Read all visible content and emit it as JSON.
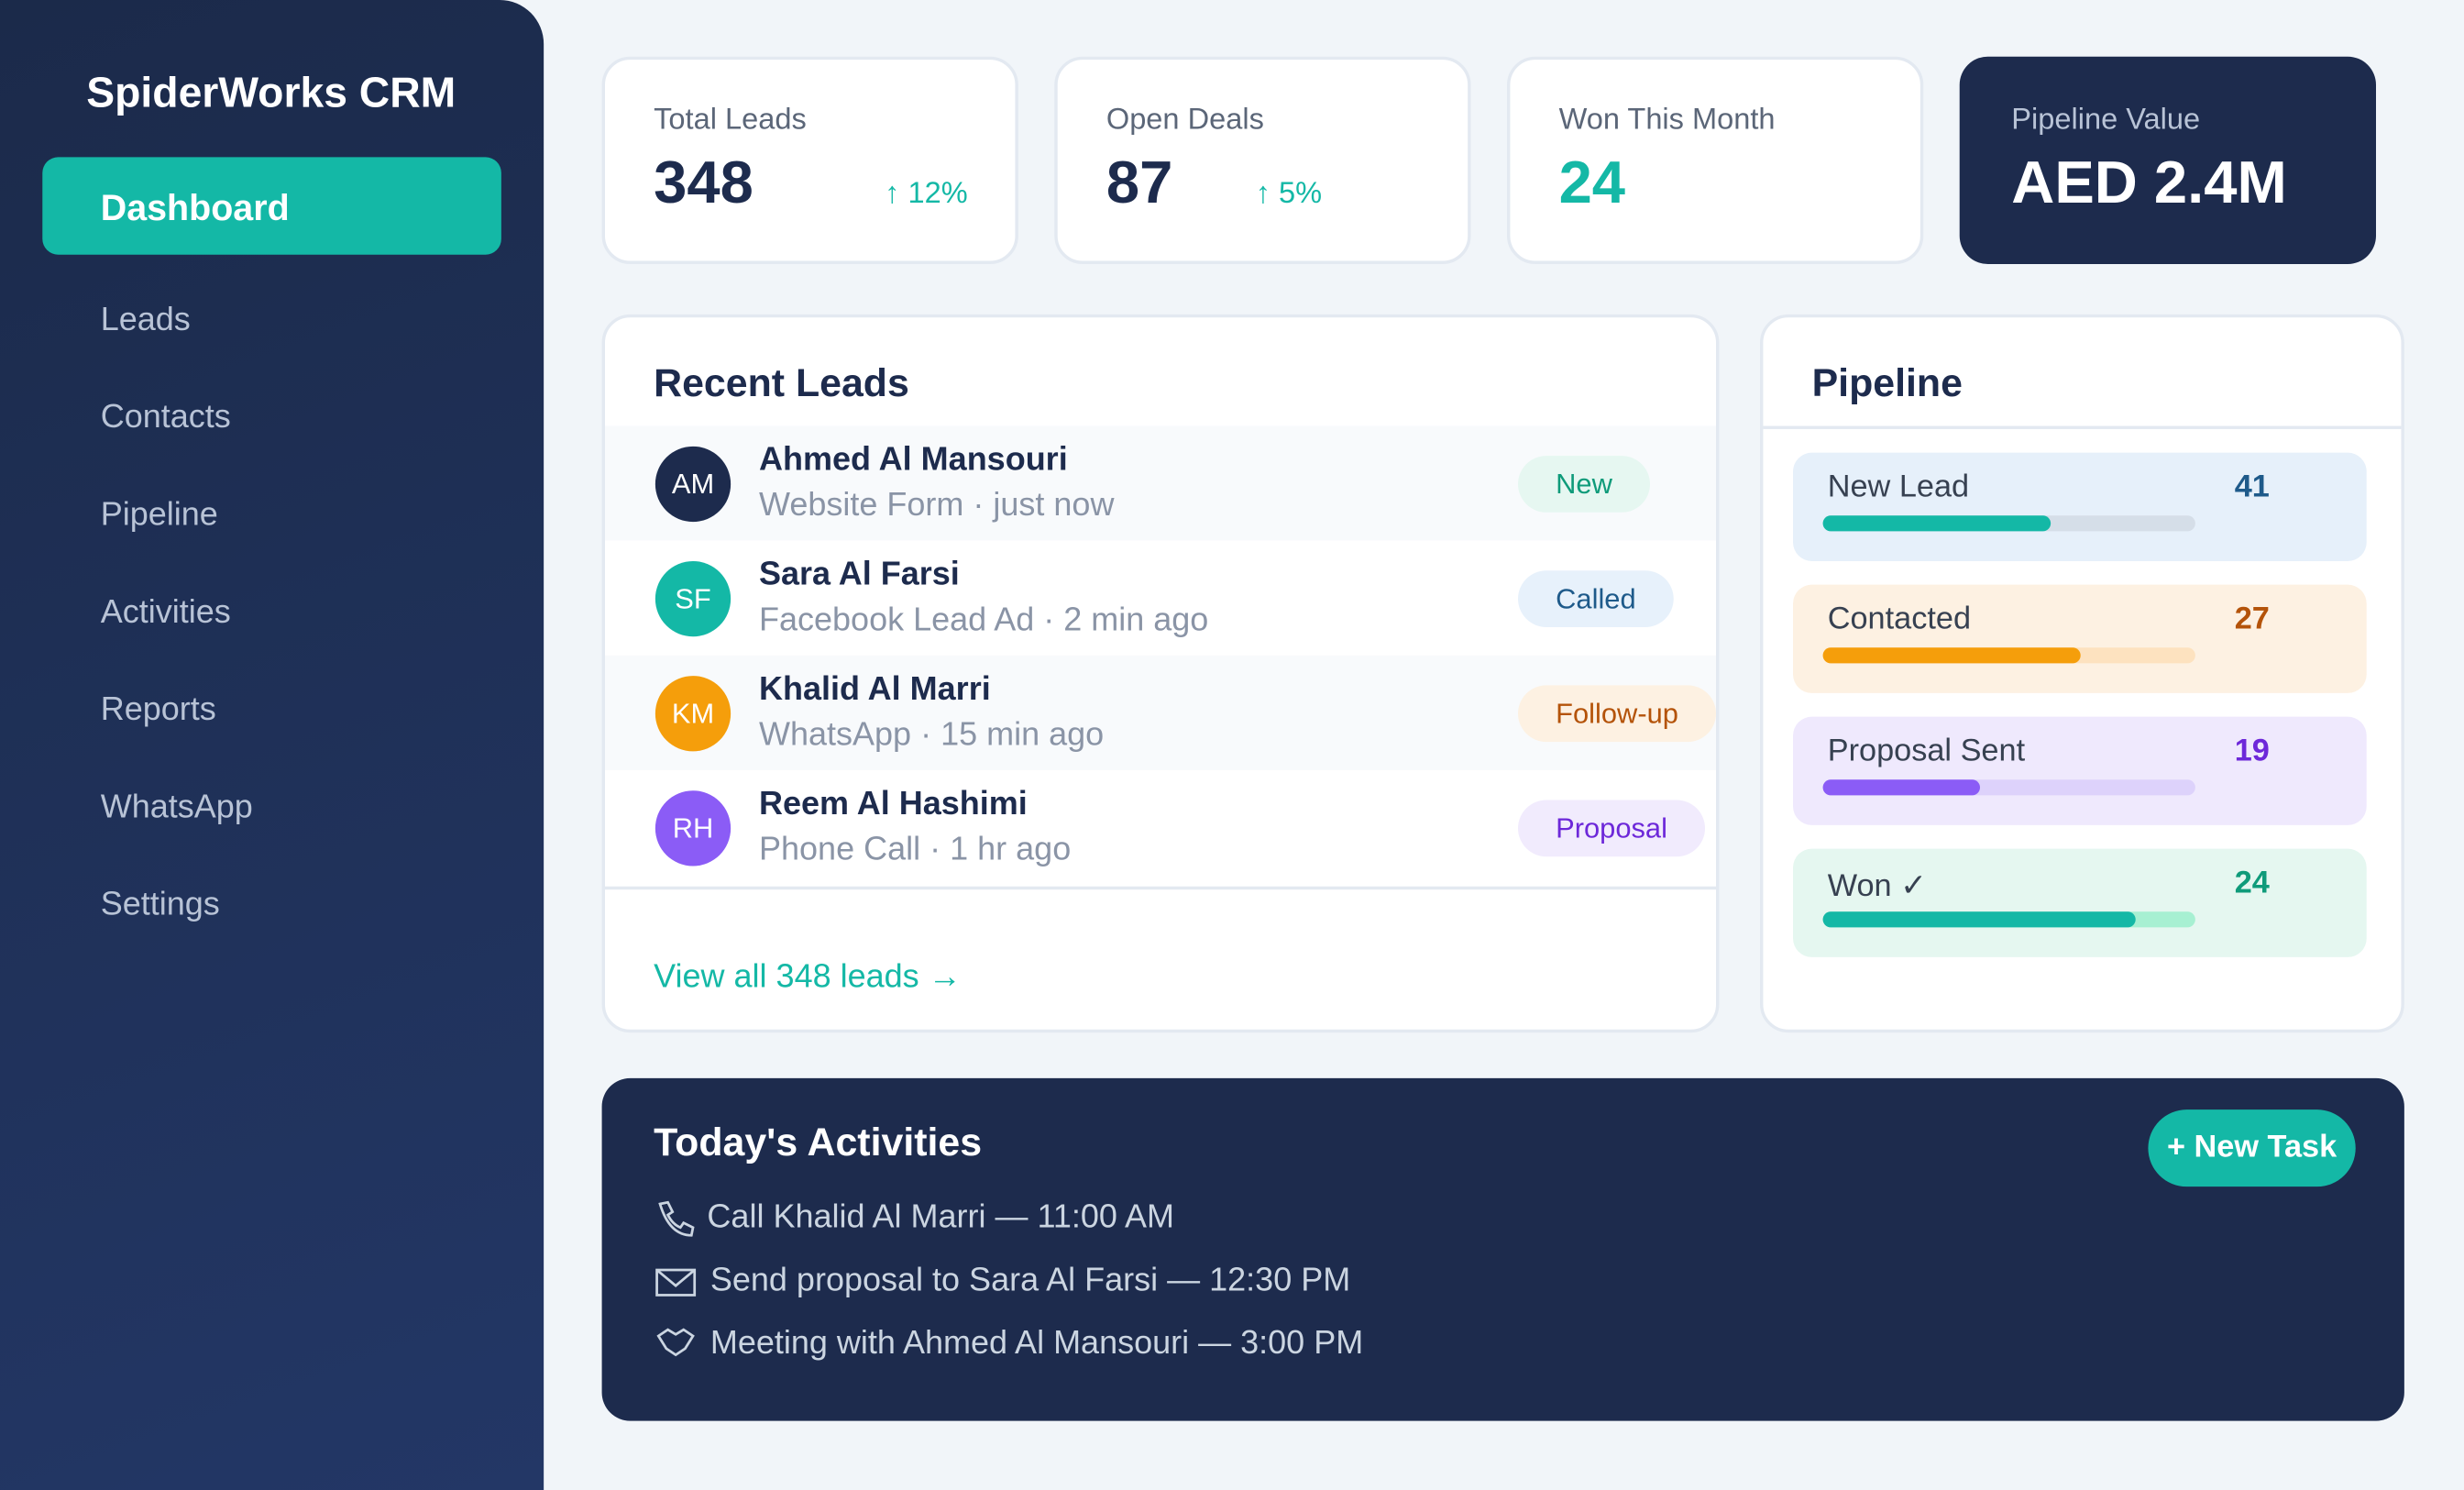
{
  "sidebar": {
    "brand": "SpiderWorks CRM",
    "nav": [
      "Dashboard",
      "Leads",
      "Contacts",
      "Pipeline",
      "Activities",
      "Reports",
      "WhatsApp",
      "Settings"
    ]
  },
  "stats": [
    {
      "label": "Total Leads",
      "value": "348",
      "change": "↑ 12%"
    },
    {
      "label": "Open Deals",
      "value": "87",
      "change": "↑ 5%"
    },
    {
      "label": "Won This Month",
      "value": "24"
    },
    {
      "label": "Pipeline Value",
      "value": "AED 2.4M"
    }
  ],
  "recent_leads": {
    "title": "Recent Leads",
    "items": [
      {
        "initials": "AM",
        "name": "Ahmed Al Mansouri",
        "meta": "Website Form · just now",
        "status": "New"
      },
      {
        "initials": "SF",
        "name": "Sara Al Farsi",
        "meta": "Facebook Lead Ad · 2 min ago",
        "status": "Called"
      },
      {
        "initials": "KM",
        "name": "Khalid Al Marri",
        "meta": "WhatsApp · 15 min ago",
        "status": "Follow-up"
      },
      {
        "initials": "RH",
        "name": "Reem Al Hashimi",
        "meta": "Phone Call · 1 hr ago",
        "status": "Proposal"
      }
    ],
    "link": "View all 348 leads →"
  },
  "pipeline": {
    "title": "Pipeline",
    "stages": [
      {
        "name": "New Lead",
        "count": 41,
        "progress": 61
      },
      {
        "name": "Contacted",
        "count": 27,
        "progress": 69
      },
      {
        "name": "Proposal Sent",
        "count": 19,
        "progress": 42
      },
      {
        "name": "Won ✓",
        "count": 24,
        "progress": 84
      }
    ]
  },
  "activities": {
    "title": "Today's Activities",
    "button": "+ New Task",
    "items": [
      "Call Khalid Al Marri — 11:00 AM",
      "Send proposal to Sara Al Farsi — 12:30 PM",
      "Meeting with Ahmed Al Mansouri — 3:00 PM"
    ]
  }
}
